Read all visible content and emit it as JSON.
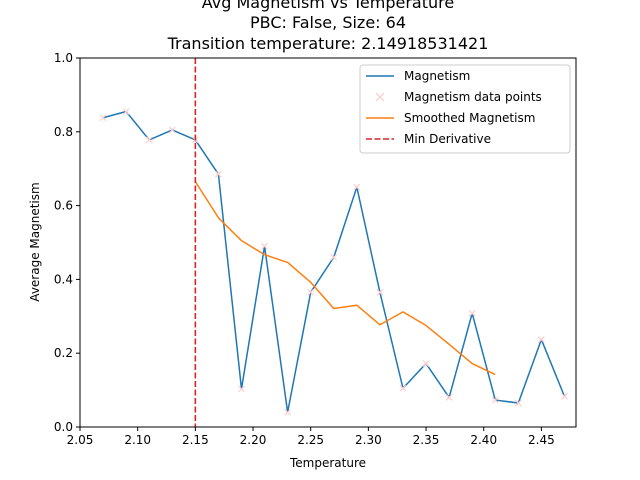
{
  "chart_data": {
    "type": "line",
    "title": [
      "Avg Magnetism vs Temperature",
      "PBC: False, Size: 64",
      "Transition temperature: 2.14918531421"
    ],
    "xlabel": "Temperature",
    "ylabel": "Average Magnetism",
    "xlim": [
      2.05,
      2.48
    ],
    "ylim": [
      0.0,
      1.0
    ],
    "xticks": [
      2.05,
      2.1,
      2.15,
      2.2,
      2.25,
      2.3,
      2.35,
      2.4,
      2.45
    ],
    "xtick_labels": [
      "2.05",
      "2.10",
      "2.15",
      "2.20",
      "2.25",
      "2.30",
      "2.35",
      "2.40",
      "2.45"
    ],
    "yticks": [
      0.0,
      0.2,
      0.4,
      0.6,
      0.8,
      1.0
    ],
    "ytick_labels": [
      "0.0",
      "0.2",
      "0.4",
      "0.6",
      "0.8",
      "1.0"
    ],
    "grid": false,
    "legend_position": "top-right",
    "series": [
      {
        "name": "Magnetism",
        "kind": "line",
        "color": "#1f77b4",
        "x": [
          2.07,
          2.09,
          2.11,
          2.13,
          2.15,
          2.17,
          2.19,
          2.21,
          2.23,
          2.25,
          2.27,
          2.29,
          2.31,
          2.33,
          2.35,
          2.37,
          2.39,
          2.41,
          2.43,
          2.45,
          2.47
        ],
        "y": [
          0.838,
          0.855,
          0.778,
          0.805,
          0.778,
          0.685,
          0.103,
          0.49,
          0.04,
          0.365,
          0.46,
          0.65,
          0.365,
          0.105,
          0.172,
          0.08,
          0.308,
          0.073,
          0.065,
          0.237,
          0.083
        ]
      },
      {
        "name": "Magnetism data points",
        "kind": "markers",
        "color": "#ffcccc",
        "x": [
          2.07,
          2.09,
          2.11,
          2.13,
          2.15,
          2.17,
          2.19,
          2.21,
          2.23,
          2.25,
          2.27,
          2.29,
          2.31,
          2.33,
          2.35,
          2.37,
          2.39,
          2.41,
          2.43,
          2.45,
          2.47
        ],
        "y": [
          0.838,
          0.855,
          0.778,
          0.805,
          0.778,
          0.685,
          0.103,
          0.49,
          0.04,
          0.365,
          0.46,
          0.65,
          0.365,
          0.105,
          0.172,
          0.08,
          0.308,
          0.073,
          0.065,
          0.237,
          0.083
        ]
      },
      {
        "name": "Smoothed Magnetism",
        "kind": "line",
        "color": "#ff7f0e",
        "x": [
          2.15,
          2.17,
          2.19,
          2.21,
          2.23,
          2.25,
          2.27,
          2.29,
          2.31,
          2.33,
          2.35,
          2.37,
          2.39,
          2.41
        ],
        "y": [
          0.665,
          0.567,
          0.505,
          0.467,
          0.446,
          0.392,
          0.321,
          0.33,
          0.277,
          0.312,
          0.275,
          0.224,
          0.172,
          0.142
        ]
      },
      {
        "name": "Min Derivative",
        "kind": "vline",
        "color": "#d62728",
        "x": 2.15
      }
    ]
  }
}
